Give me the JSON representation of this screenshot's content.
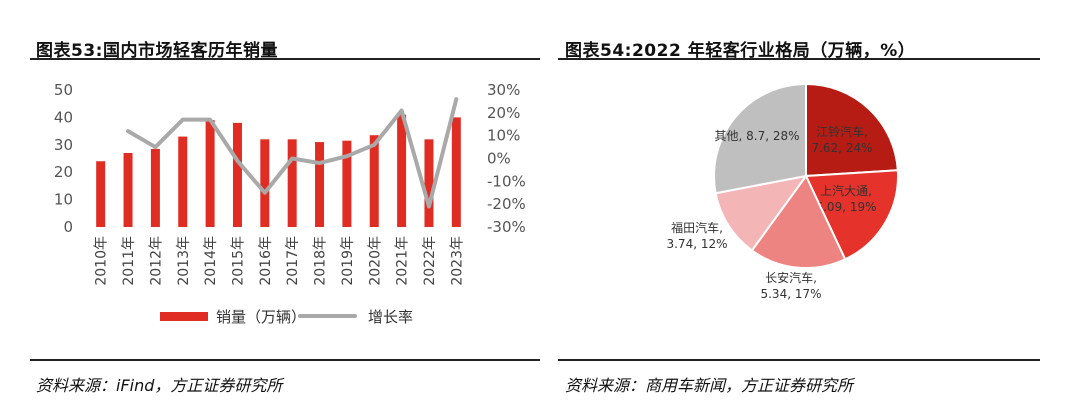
{
  "left": {
    "title": "图表53:国内市场轻客历年销量",
    "source": "资料来源：iFind，方正证券研究所"
  },
  "right": {
    "title": "图表54:2022 年轻客行业格局（万辆，%）",
    "source": "资料来源：商用车新闻，方正证券研究所"
  },
  "chart_data": [
    {
      "type": "bar+line",
      "categories": [
        "2010年",
        "2011年",
        "2012年",
        "2013年",
        "2014年",
        "2015年",
        "2016年",
        "2017年",
        "2018年",
        "2019年",
        "2020年",
        "2021年",
        "2022年",
        "2023年"
      ],
      "left_ticks": [
        "0",
        "10",
        "20",
        "30",
        "40",
        "50"
      ],
      "right_ticks": [
        "-30%",
        "-20%",
        "-10%",
        "0%",
        "10%",
        "20%",
        "30%"
      ],
      "ylim": [
        0,
        50
      ],
      "y2lim": [
        -30,
        30
      ],
      "series": [
        {
          "name": "销量（万辆）",
          "type": "bar",
          "color": "#e02d24",
          "values": [
            24,
            27,
            28.5,
            33,
            39,
            38,
            32,
            32,
            31,
            31.5,
            33.5,
            41,
            32,
            40
          ]
        },
        {
          "name": "增长率",
          "type": "line",
          "color": "#a9a9a9",
          "values": [
            null,
            12,
            5,
            17,
            17,
            -1,
            -15,
            0,
            -2,
            1,
            6,
            21,
            -21,
            26
          ]
        }
      ]
    },
    {
      "type": "pie",
      "slices": [
        {
          "label_lines": [
            "江铃汽车,",
            "7.62, 24%"
          ],
          "value": 24,
          "color": "#b71c14"
        },
        {
          "label_lines": [
            "上汽大通,",
            "6.09, 19%"
          ],
          "value": 19,
          "color": "#e5322b"
        },
        {
          "label_lines": [
            "长安汽车,",
            "5.34, 17%"
          ],
          "value": 17,
          "color": "#ee8481"
        },
        {
          "label_lines": [
            "福田汽车,",
            "3.74, 12%"
          ],
          "value": 12,
          "color": "#f3b5b5"
        },
        {
          "label_lines": [
            "其他, 8.7, 28%"
          ],
          "value": 28,
          "color": "#bfbfbf"
        }
      ]
    }
  ]
}
